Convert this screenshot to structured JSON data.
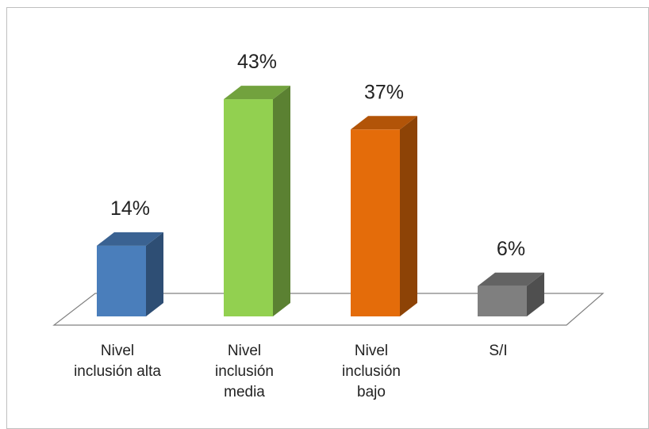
{
  "chart_data": {
    "type": "bar",
    "style": "3d-column",
    "categories": [
      [
        "Nivel",
        "inclusión alta"
      ],
      [
        "Nivel",
        "inclusión",
        "media"
      ],
      [
        "Nivel",
        "inclusión",
        "bajo"
      ],
      [
        "S/I"
      ]
    ],
    "values": [
      14,
      43,
      37,
      6
    ],
    "data_labels": [
      "14%",
      "43%",
      "37%",
      "6%"
    ],
    "unit": "%",
    "colors": [
      "#4a7ebb",
      "#92d050",
      "#e46c0a",
      "#7f7f7f"
    ],
    "legend": "none",
    "grid": false
  }
}
